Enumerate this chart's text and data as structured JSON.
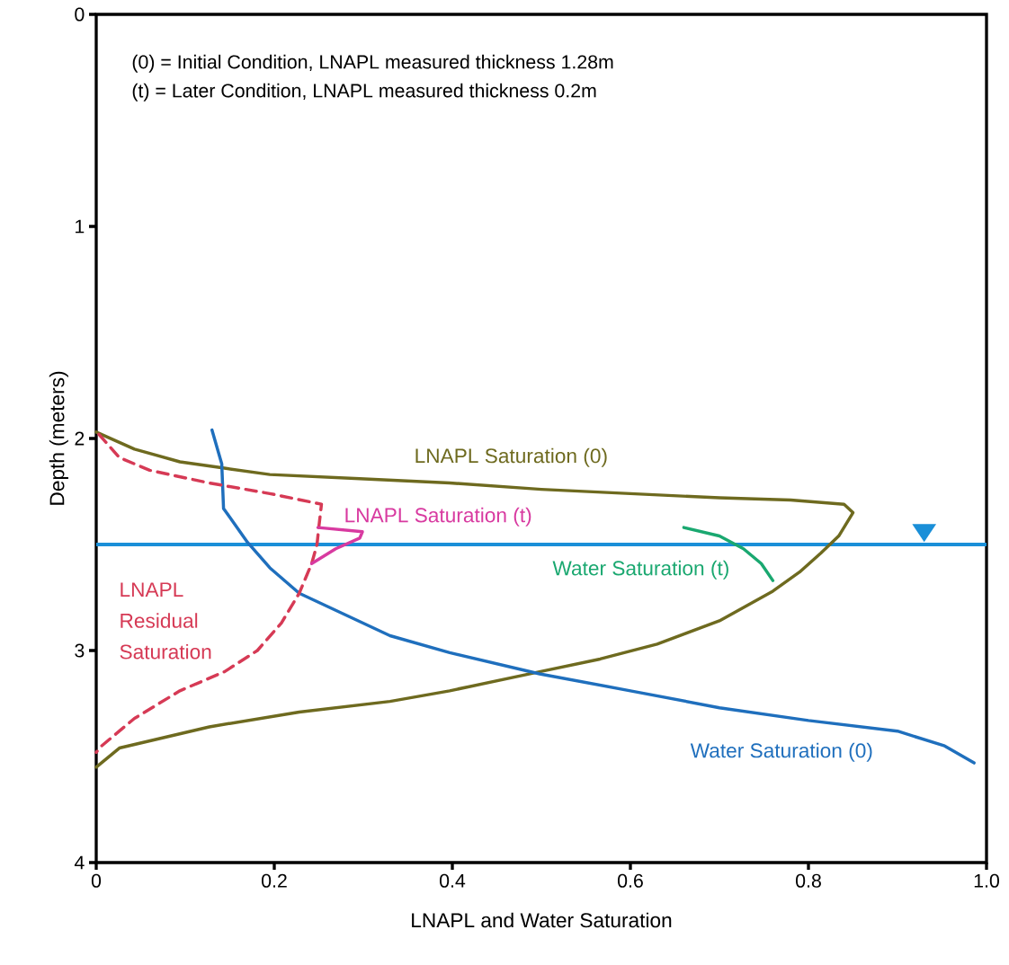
{
  "chart_data": {
    "type": "line",
    "xlabel": "LNAPL and Water Saturation",
    "ylabel": "Depth (meters)",
    "annotations": [
      "(0) = Initial Condition, LNAPL measured thickness 1.28m",
      "(t) = Later Condition, LNAPL measured thickness 0.2m"
    ],
    "xlim": [
      0,
      1
    ],
    "ylim": [
      4,
      0
    ],
    "xticks": [
      0,
      0.2,
      0.4,
      0.6,
      0.8,
      {
        "value": 1,
        "label": "1.0"
      }
    ],
    "yticks": [
      0,
      1,
      2,
      3,
      4
    ],
    "grid": false,
    "marker": "none",
    "ref_lines": [
      {
        "axis": "y",
        "value": 2.5,
        "color": "#1a8fd8"
      }
    ],
    "series": [
      {
        "name": "LNAPL Saturation (0)",
        "color": "#6e6a1f",
        "line_style": "solid",
        "x": [
          0,
          0.043,
          0.094,
          0.144,
          0.195,
          0.296,
          0.397,
          0.5,
          0.6,
          0.7,
          0.78,
          0.84,
          0.85,
          0.834,
          0.814,
          0.79,
          0.76,
          0.7,
          0.63,
          0.566,
          0.498,
          0.397,
          0.33,
          0.228,
          0.127,
          0.026,
          0.003,
          0
        ],
        "values": [
          1.97,
          2.05,
          2.11,
          2.14,
          2.17,
          2.19,
          2.21,
          2.24,
          2.26,
          2.28,
          2.29,
          2.31,
          2.35,
          2.46,
          2.54,
          2.63,
          2.72,
          2.86,
          2.97,
          3.04,
          3.1,
          3.19,
          3.24,
          3.29,
          3.36,
          3.46,
          3.54,
          3.55
        ]
      },
      {
        "name": "Water Saturation (0)",
        "color": "#1f6fbd",
        "line_style": "solid",
        "x": [
          0.13,
          0.141,
          0.143,
          0.17,
          0.195,
          0.228,
          0.279,
          0.33,
          0.397,
          0.498,
          0.6,
          0.7,
          0.8,
          0.9,
          0.953,
          0.986
        ],
        "values": [
          1.96,
          2.12,
          2.33,
          2.49,
          2.61,
          2.73,
          2.83,
          2.93,
          3.01,
          3.11,
          3.19,
          3.27,
          3.33,
          3.38,
          3.45,
          3.53
        ]
      },
      {
        "name": "LNAPL Residual Saturation",
        "color": "#d63a55",
        "line_style": "dashed",
        "x": [
          0.003,
          0.026,
          0.06,
          0.127,
          0.195,
          0.253,
          0.25,
          0.248,
          0.242,
          0.228,
          0.208,
          0.181,
          0.144,
          0.094,
          0.043,
          0.006,
          0
        ],
        "values": [
          1.98,
          2.09,
          2.15,
          2.21,
          2.26,
          2.31,
          2.42,
          2.5,
          2.59,
          2.73,
          2.87,
          3.0,
          3.1,
          3.19,
          3.32,
          3.45,
          3.48
        ]
      },
      {
        "name": "LNAPL Saturation (t)",
        "color": "#d83aa0",
        "line_style": "solid",
        "x": [
          0.249,
          0.299,
          0.296,
          0.269,
          0.242
        ],
        "values": [
          2.42,
          2.44,
          2.47,
          2.52,
          2.59
        ]
      },
      {
        "name": "Water Saturation (t)",
        "color": "#1aa870",
        "line_style": "solid",
        "x": [
          0.66,
          0.7,
          0.727,
          0.747,
          0.76
        ],
        "values": [
          2.42,
          2.46,
          2.52,
          2.59,
          2.67
        ]
      }
    ]
  }
}
